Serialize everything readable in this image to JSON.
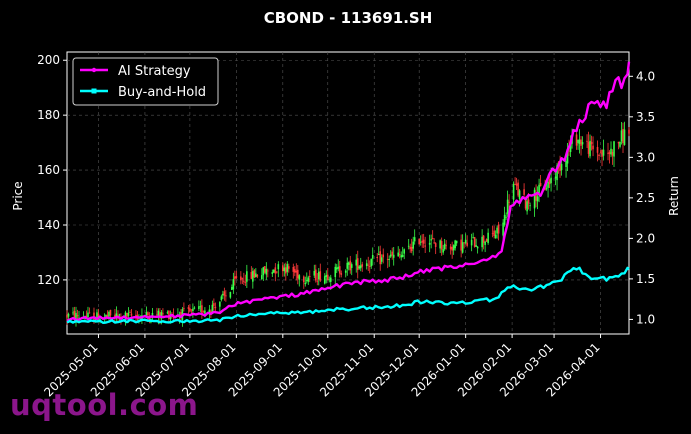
{
  "chart_data": {
    "type": "line",
    "title": "CBOND - 113691.SH",
    "ylabel": "Price",
    "y2label": "Return",
    "ylim": [
      100.3,
      203
    ],
    "y2lim": [
      0.82,
      4.3
    ],
    "xlim": [
      "2025-04-10",
      "2026-04-20"
    ],
    "yticks": [
      120,
      140,
      160,
      180,
      200
    ],
    "y2ticks": [
      1.0,
      1.5,
      2.0,
      2.5,
      3.0,
      3.5,
      4.0
    ],
    "xticks": [
      "2025-05-01",
      "2025-06-01",
      "2025-07-01",
      "2025-08-01",
      "2025-09-01",
      "2025-10-01",
      "2025-11-01",
      "2025-12-01",
      "2026-01-01",
      "2026-02-01",
      "2026-03-01",
      "2026-04-01"
    ],
    "grid": true,
    "legend_position": "top-left",
    "colors": {
      "up": "#39ff4a",
      "down": "#ff3a3a",
      "ai": "#ff00ff",
      "bh": "#00ffff"
    },
    "candlestick_price_path": [
      [
        "2025-04-10",
        107
      ],
      [
        "2025-05-01",
        106.5
      ],
      [
        "2025-06-01",
        107
      ],
      [
        "2025-07-01",
        108
      ],
      [
        "2025-07-15",
        110
      ],
      [
        "2025-07-25",
        114
      ],
      [
        "2025-08-01",
        120
      ],
      [
        "2025-08-20",
        123
      ],
      [
        "2025-09-01",
        125
      ],
      [
        "2025-09-15",
        121
      ],
      [
        "2025-10-01",
        122
      ],
      [
        "2025-10-15",
        125
      ],
      [
        "2025-11-01",
        127
      ],
      [
        "2025-11-20",
        129
      ],
      [
        "2025-12-01",
        135
      ],
      [
        "2025-12-20",
        132
      ],
      [
        "2026-01-01",
        133
      ],
      [
        "2026-01-15",
        135
      ],
      [
        "2026-01-25",
        138
      ],
      [
        "2026-02-01",
        155
      ],
      [
        "2026-02-10",
        148
      ],
      [
        "2026-02-25",
        155
      ],
      [
        "2026-03-05",
        162
      ],
      [
        "2026-03-15",
        172
      ],
      [
        "2026-03-25",
        168
      ],
      [
        "2026-04-05",
        165
      ],
      [
        "2026-04-20",
        175
      ]
    ],
    "series": [
      {
        "name": "AI Strategy",
        "axis": "return",
        "points": [
          [
            "2025-04-10",
            1.0
          ],
          [
            "2025-05-01",
            1.02
          ],
          [
            "2025-06-01",
            1.03
          ],
          [
            "2025-07-01",
            1.05
          ],
          [
            "2025-07-20",
            1.08
          ],
          [
            "2025-08-01",
            1.2
          ],
          [
            "2025-08-20",
            1.25
          ],
          [
            "2025-09-01",
            1.28
          ],
          [
            "2025-09-15",
            1.32
          ],
          [
            "2025-10-01",
            1.38
          ],
          [
            "2025-10-15",
            1.45
          ],
          [
            "2025-10-31",
            1.47
          ],
          [
            "2025-11-15",
            1.5
          ],
          [
            "2025-12-01",
            1.58
          ],
          [
            "2025-12-20",
            1.64
          ],
          [
            "2026-01-01",
            1.68
          ],
          [
            "2026-01-15",
            1.73
          ],
          [
            "2026-01-25",
            1.85
          ],
          [
            "2026-02-01",
            2.45
          ],
          [
            "2026-02-10",
            2.48
          ],
          [
            "2026-02-20",
            2.57
          ],
          [
            "2026-03-01",
            2.85
          ],
          [
            "2026-03-10",
            3.05
          ],
          [
            "2026-03-15",
            3.35
          ],
          [
            "2026-03-25",
            3.62
          ],
          [
            "2026-04-05",
            3.65
          ],
          [
            "2026-04-10",
            3.92
          ],
          [
            "2026-04-17",
            3.92
          ],
          [
            "2026-04-20",
            4.18
          ]
        ]
      },
      {
        "name": "Buy-and-Hold",
        "axis": "return",
        "points": [
          [
            "2025-04-10",
            0.98
          ],
          [
            "2025-05-01",
            0.97
          ],
          [
            "2025-06-01",
            0.98
          ],
          [
            "2025-07-01",
            0.98
          ],
          [
            "2025-07-20",
            0.99
          ],
          [
            "2025-08-01",
            1.04
          ],
          [
            "2025-08-20",
            1.07
          ],
          [
            "2025-09-01",
            1.09
          ],
          [
            "2025-09-15",
            1.08
          ],
          [
            "2025-10-01",
            1.12
          ],
          [
            "2025-10-15",
            1.13
          ],
          [
            "2025-11-01",
            1.15
          ],
          [
            "2025-11-20",
            1.17
          ],
          [
            "2025-12-01",
            1.22
          ],
          [
            "2025-12-20",
            1.2
          ],
          [
            "2026-01-01",
            1.21
          ],
          [
            "2026-01-20",
            1.25
          ],
          [
            "2026-02-01",
            1.42
          ],
          [
            "2026-02-10",
            1.36
          ],
          [
            "2026-02-25",
            1.42
          ],
          [
            "2026-03-05",
            1.48
          ],
          [
            "2026-03-15",
            1.65
          ],
          [
            "2026-03-25",
            1.52
          ],
          [
            "2026-04-05",
            1.5
          ],
          [
            "2026-04-15",
            1.56
          ],
          [
            "2026-04-20",
            1.62
          ]
        ]
      }
    ]
  },
  "watermark": "uqtool.com"
}
